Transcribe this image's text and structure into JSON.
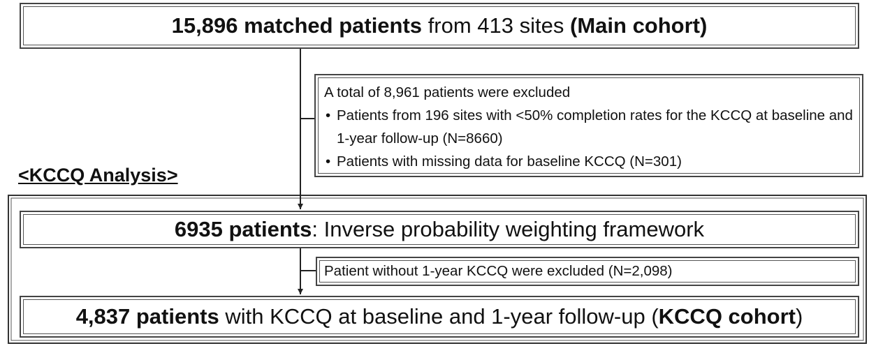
{
  "main_cohort": [
    "15,896 matched patients",
    "from 413 sites",
    "(Main cohort)"
  ],
  "exclusion_1": {
    "heading": "A total of 8,961 patients were excluded",
    "items": [
      "Patients from 196 sites with <50% completion rates for the KCCQ at baseline and 1-year follow-up (N=8660)",
      "Patients with missing data for baseline KCCQ (N=301)"
    ]
  },
  "section_label": "<KCCQ Analysis>",
  "ipw_cohort": [
    "6935 patients",
    ": Inverse probability weighting framework"
  ],
  "exclusion_2": "Patient without 1-year KCCQ were excluded (N=2,098)",
  "kccq_cohort": [
    "4,837 patients",
    "with KCCQ at baseline and 1-year follow-up (",
    "KCCQ cohort",
    ")"
  ]
}
